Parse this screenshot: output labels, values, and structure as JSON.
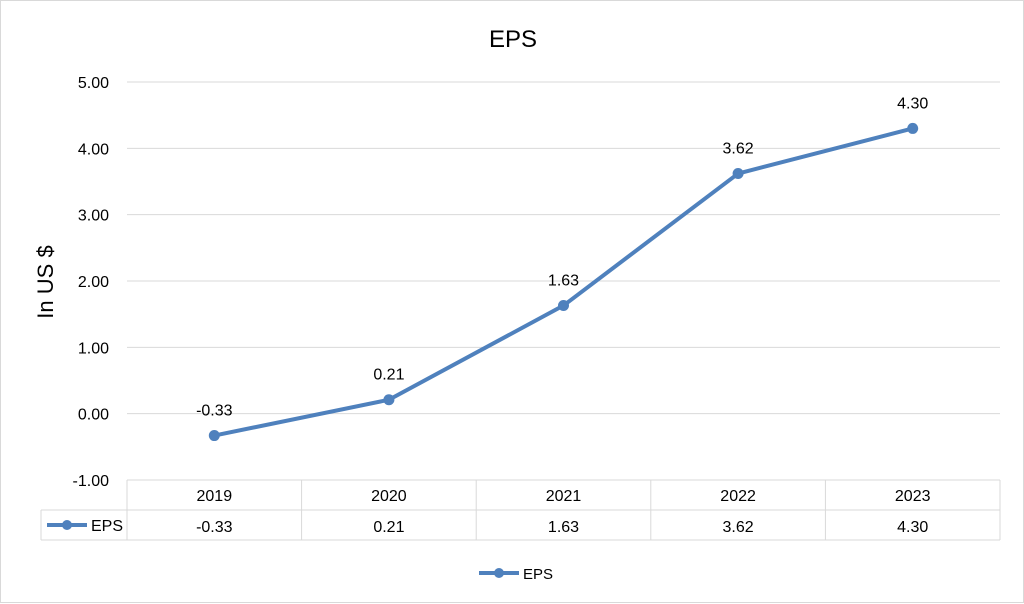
{
  "chart_data": {
    "type": "line",
    "title": "EPS",
    "ylabel": "In US $",
    "xlabel": "",
    "categories": [
      "2019",
      "2020",
      "2021",
      "2022",
      "2023"
    ],
    "series": [
      {
        "name": "EPS",
        "values": [
          -0.33,
          0.21,
          1.63,
          3.62,
          4.3
        ],
        "labels": [
          "-0.33",
          "0.21",
          "1.63",
          "3.62",
          "4.30"
        ],
        "color": "#4f81bd"
      }
    ],
    "ylim": [
      -1.0,
      5.0
    ],
    "yticks": [
      "5.00",
      "4.00",
      "3.00",
      "2.00",
      "1.00",
      "0.00",
      "-1.00"
    ],
    "grid": true,
    "data_table": true,
    "legend": "bottom"
  }
}
